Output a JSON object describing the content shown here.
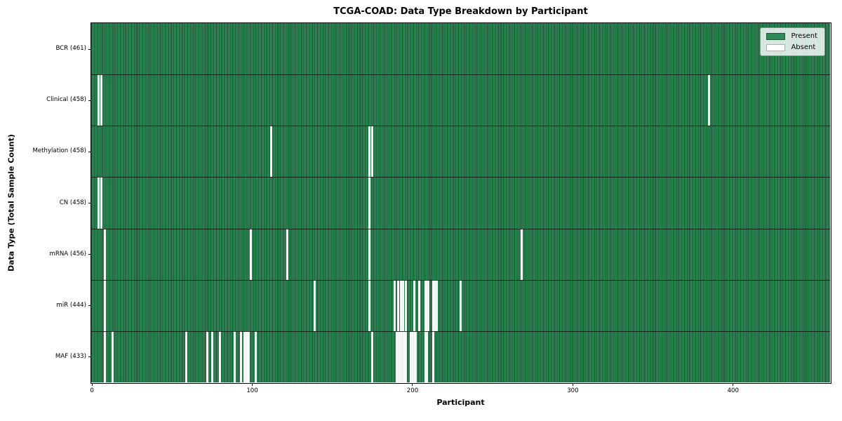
{
  "chart_data": {
    "type": "heatmap",
    "title": "TCGA-COAD: Data Type Breakdown by Participant",
    "xlabel": "Participant",
    "ylabel": "Data Type (Total Sample Count)",
    "n_participants": 461,
    "x_ticks": [
      0,
      100,
      200,
      300,
      400
    ],
    "grid": false,
    "legend_position": "upper right",
    "colors": {
      "present": "#2e8b57",
      "bar_edge": "#1b5033",
      "absent": "#ffffff"
    },
    "legend": [
      {
        "key": "present",
        "label": "Present",
        "color": "#2e8b57"
      },
      {
        "key": "absent",
        "label": "Absent",
        "color": "#ffffff"
      }
    ],
    "rows": [
      {
        "label": "BCR (461)",
        "name": "BCR",
        "total": 461,
        "absent": []
      },
      {
        "label": "Clinical (458)",
        "name": "Clinical",
        "total": 458,
        "absent": [
          4,
          6,
          385
        ]
      },
      {
        "label": "Methylation (458)",
        "name": "Methylation",
        "total": 458,
        "absent": [
          112,
          173,
          175
        ]
      },
      {
        "label": "CN (458)",
        "name": "CN",
        "total": 458,
        "absent": [
          4,
          6,
          173
        ]
      },
      {
        "label": "mRNA (456)",
        "name": "mRNA",
        "total": 456,
        "absent": [
          8,
          99,
          122,
          173,
          268
        ]
      },
      {
        "label": "miR (444)",
        "name": "miR",
        "total": 444,
        "absent": [
          8,
          139,
          173,
          189,
          191,
          193,
          194,
          196,
          201,
          204,
          208,
          209,
          210,
          213,
          214,
          215,
          230
        ]
      },
      {
        "label": "MAF (433)",
        "name": "MAF",
        "total": 433,
        "absent": [
          8,
          13,
          59,
          72,
          75,
          80,
          89,
          93,
          95,
          96,
          97,
          98,
          102,
          175,
          190,
          191,
          192,
          193,
          194,
          195,
          196,
          199,
          200,
          201,
          202,
          208,
          209,
          213
        ]
      }
    ]
  }
}
